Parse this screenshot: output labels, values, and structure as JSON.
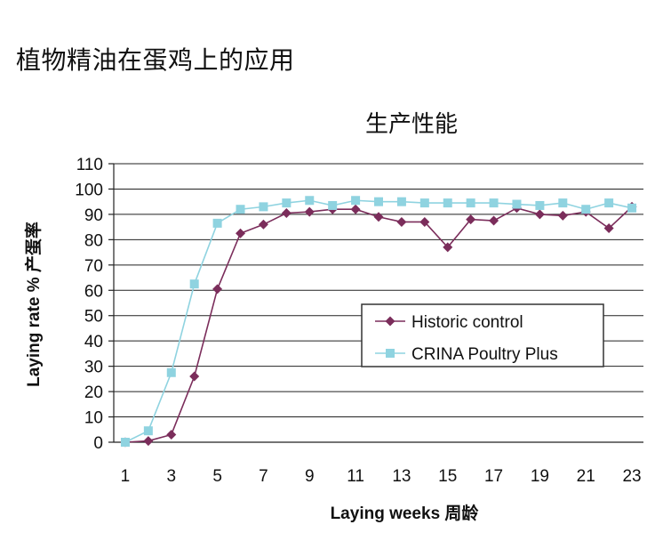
{
  "page": {
    "title": "植物精油在蛋鸡上的应用"
  },
  "chart_data": {
    "type": "line",
    "title": "生产性能",
    "xlabel": "Laying weeks 周龄",
    "ylabel": "Laying rate % 产蛋率",
    "x": [
      1,
      2,
      3,
      4,
      5,
      6,
      7,
      8,
      9,
      10,
      11,
      12,
      13,
      14,
      15,
      16,
      17,
      18,
      19,
      20,
      21,
      22,
      23
    ],
    "xticks": [
      1,
      3,
      5,
      7,
      9,
      11,
      13,
      15,
      17,
      19,
      21,
      23
    ],
    "xlim": [
      0.5,
      23.5
    ],
    "ylim": [
      0,
      110
    ],
    "yticks": [
      0,
      10,
      20,
      30,
      40,
      50,
      60,
      70,
      80,
      90,
      100,
      110
    ],
    "grid": true,
    "legend": "right-middle",
    "series": [
      {
        "name": "Historic control",
        "color": "#7b2d5b",
        "marker": "diamond",
        "values": [
          0,
          0.5,
          3,
          26,
          60.5,
          82.5,
          86,
          90.5,
          91,
          92,
          92,
          89,
          87,
          87,
          77,
          88,
          87.5,
          92.5,
          90,
          89.5,
          91,
          84.5,
          93
        ]
      },
      {
        "name": "CRINA Poultry Plus",
        "color": "#8fd3e0",
        "marker": "square",
        "values": [
          0,
          4.5,
          27.5,
          62.5,
          86.5,
          92,
          93,
          94.5,
          95.5,
          93.5,
          95.5,
          95,
          95,
          94.5,
          94.5,
          94.5,
          94.5,
          94,
          93.5,
          94.5,
          92,
          94.5,
          92.5
        ]
      }
    ]
  }
}
